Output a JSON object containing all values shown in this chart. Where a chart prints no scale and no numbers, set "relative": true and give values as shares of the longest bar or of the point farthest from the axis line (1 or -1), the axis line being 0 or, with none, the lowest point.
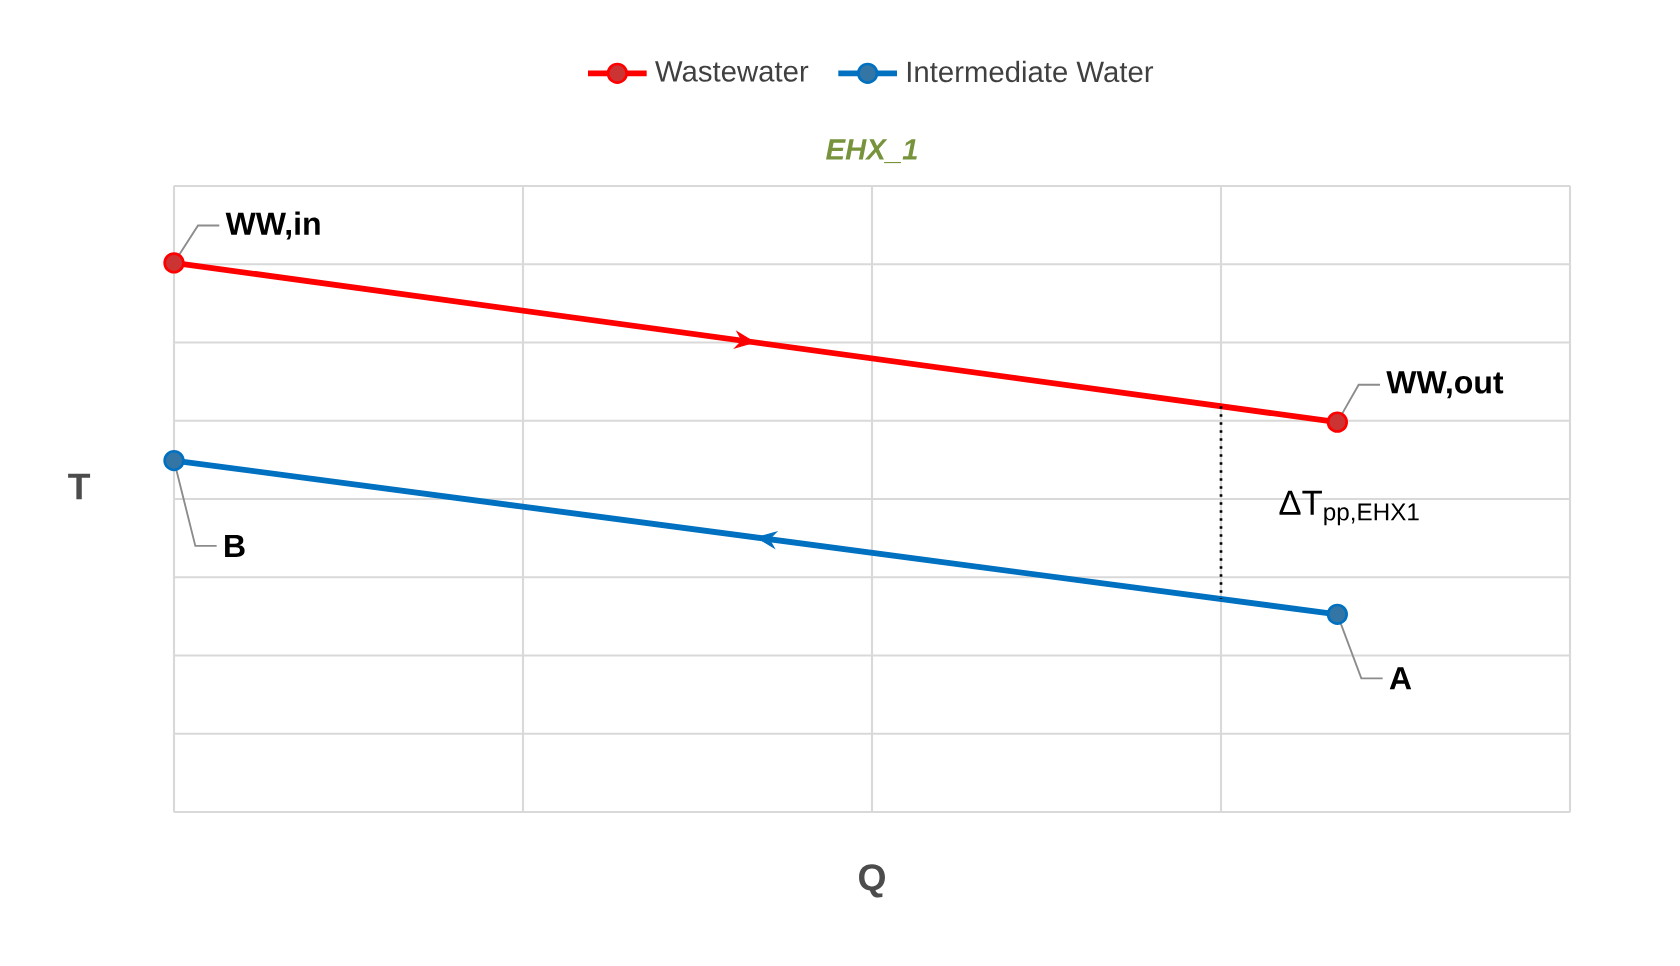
{
  "chart_data": {
    "type": "line",
    "title": "EHX_1",
    "xlabel": "Q",
    "ylabel": "T",
    "relative": true,
    "grid": true,
    "legend": "top",
    "marker": "circle",
    "line_style": "solid",
    "categories": [
      null,
      null,
      null,
      null,
      null,
      null
    ],
    "series": [
      {
        "name": "Wastewater",
        "color": "#ff0000",
        "values": [
          1,
          null,
          null,
          null,
          null,
          0.71
        ]
      },
      {
        "name": "Intermediate Water",
        "color": "#0070c0",
        "values": [
          0.64,
          null,
          null,
          null,
          null,
          0.36
        ]
      }
    ],
    "annotations": [
      "WW,in",
      "WW,out",
      "B",
      "A",
      "ΔT$_{pp,EHX1}$"
    ]
  }
}
